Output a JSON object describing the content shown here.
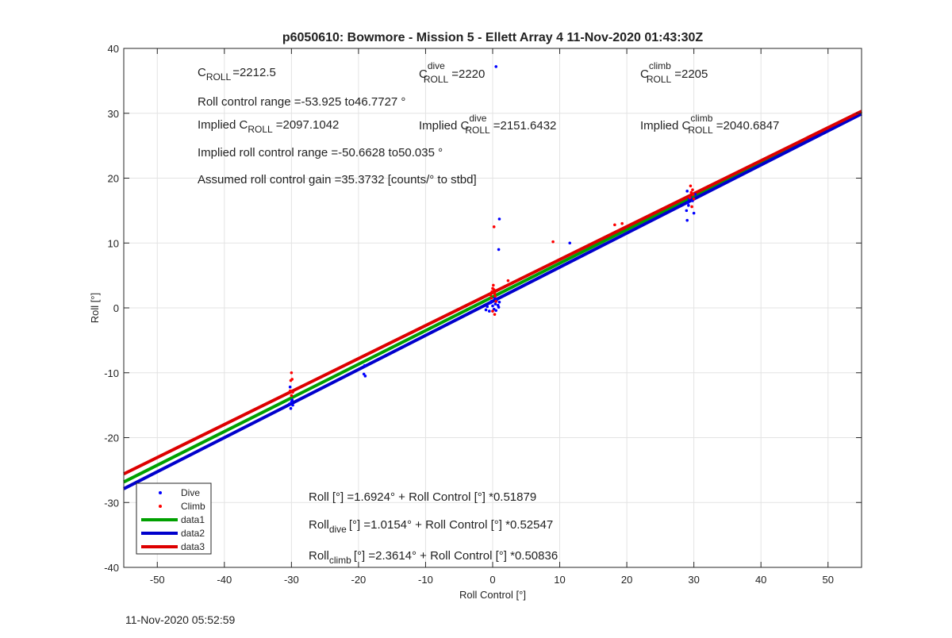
{
  "chart_data": {
    "type": "scatter",
    "title": "p6050610: Bowmore - Mission 5 - Ellett Array 4 11-Nov-2020 01:43:30Z",
    "xlabel": "Roll Control [°]",
    "ylabel": "Roll [°]",
    "xlim": [
      -55,
      55
    ],
    "ylim": [
      -40,
      40
    ],
    "xticks": [
      -50,
      -40,
      -30,
      -20,
      -10,
      0,
      10,
      20,
      30,
      40,
      50
    ],
    "yticks": [
      -40,
      -30,
      -20,
      -10,
      0,
      10,
      20,
      30,
      40
    ],
    "grid": true,
    "legend_position": "bottom-left",
    "series": [
      {
        "name": "Dive",
        "kind": "points",
        "color": "#0000ff",
        "points": [
          [
            -30.2,
            -12.2
          ],
          [
            -30.0,
            -14.5
          ],
          [
            -29.8,
            -15.0
          ],
          [
            -30.1,
            -15.5
          ],
          [
            -30.3,
            -14.8
          ],
          [
            -29.9,
            -14.2
          ],
          [
            -19.2,
            -10.2
          ],
          [
            -19.0,
            -10.5
          ],
          [
            -19.1,
            -8.9
          ],
          [
            -1.0,
            -0.3
          ],
          [
            -0.8,
            0.2
          ],
          [
            -0.5,
            -0.5
          ],
          [
            -0.3,
            0.8
          ],
          [
            0.0,
            0.3
          ],
          [
            0.2,
            -0.2
          ],
          [
            0.4,
            0.6
          ],
          [
            0.6,
            1.2
          ],
          [
            0.8,
            0.4
          ],
          [
            1.0,
            0.9
          ],
          [
            0.3,
            1.5
          ],
          [
            -0.2,
            1.0
          ],
          [
            0.5,
            -0.4
          ],
          [
            0.9,
            0.1
          ],
          [
            0.5,
            37.2
          ],
          [
            1.0,
            13.7
          ],
          [
            0.9,
            9.0
          ],
          [
            11.5,
            10.0
          ],
          [
            29.0,
            18.0
          ],
          [
            28.9,
            15.0
          ],
          [
            29.2,
            15.8
          ],
          [
            29.0,
            13.5
          ],
          [
            29.1,
            16.2
          ],
          [
            29.5,
            17.0
          ],
          [
            29.8,
            16.5
          ],
          [
            30.0,
            14.6
          ],
          [
            29.3,
            16.8
          ],
          [
            30.2,
            17.5
          ]
        ]
      },
      {
        "name": "Climb",
        "kind": "points",
        "color": "#ff0000",
        "points": [
          [
            -30.0,
            -10.0
          ],
          [
            -30.1,
            -11.2
          ],
          [
            -29.9,
            -11.0
          ],
          [
            -30.2,
            -12.8
          ],
          [
            -30.0,
            -13.5
          ],
          [
            -29.8,
            -13.0
          ],
          [
            -0.3,
            2.0
          ],
          [
            -0.1,
            2.5
          ],
          [
            0.0,
            3.0
          ],
          [
            0.2,
            2.8
          ],
          [
            0.4,
            1.8
          ],
          [
            0.1,
            3.5
          ],
          [
            -0.2,
            1.5
          ],
          [
            0.3,
            2.2
          ],
          [
            0.5,
            1.0
          ],
          [
            0.0,
            -0.5
          ],
          [
            0.3,
            -1.0
          ],
          [
            0.2,
            12.5
          ],
          [
            2.3,
            4.2
          ],
          [
            9.0,
            10.2
          ],
          [
            18.2,
            12.8
          ],
          [
            19.3,
            13.0
          ],
          [
            29.5,
            18.8
          ],
          [
            29.6,
            17.8
          ],
          [
            29.8,
            18.2
          ],
          [
            29.4,
            17.0
          ],
          [
            29.7,
            15.6
          ],
          [
            29.9,
            17.5
          ],
          [
            30.0,
            16.8
          ]
        ]
      },
      {
        "name": "data1",
        "kind": "line",
        "color": "#00a000",
        "intercept": 1.6924,
        "slope": 0.51879
      },
      {
        "name": "data2",
        "kind": "line",
        "color": "#0000cc",
        "intercept": 1.0154,
        "slope": 0.52547
      },
      {
        "name": "data3",
        "kind": "line",
        "color": "#dd0000",
        "intercept": 2.3614,
        "slope": 0.50836
      }
    ],
    "annotations": {
      "c_roll": {
        "base": "C",
        "sub": "ROLL",
        "value": "=2212.5"
      },
      "c_roll_dive": {
        "base": "C",
        "sup": "dive",
        "sub": "ROLL",
        "value": "=2220"
      },
      "c_roll_climb": {
        "base": "C",
        "sup": "climb",
        "sub": "ROLL",
        "value": "=2205"
      },
      "roll_range": "Roll control range =-53.925 to46.7727 °",
      "implied_c_roll": {
        "prefix": "Implied C",
        "sub": "ROLL",
        "value": "=2097.1042"
      },
      "implied_c_roll_dive": {
        "prefix": "Implied C",
        "sup": "dive",
        "sub": "ROLL",
        "value": "=2151.6432"
      },
      "implied_c_roll_climb": {
        "prefix": "Implied C",
        "sup": "climb",
        "sub": "ROLL",
        "value": "=2040.6847"
      },
      "implied_range": "Implied roll control range =-50.6628 to50.035 °",
      "gain": "Assumed roll control gain =35.3732 [counts/° to stbd]",
      "fit_all": {
        "base": "Roll",
        "sub": "",
        "text": "[°] =1.6924° + Roll Control [°] *0.51879"
      },
      "fit_dive": {
        "base": "Roll",
        "sub": "dive",
        "text": "[°] =1.0154° + Roll Control [°] *0.52547"
      },
      "fit_climb": {
        "base": "Roll",
        "sub": "climb",
        "text": "[°] =2.3614° + Roll Control [°] *0.50836"
      }
    }
  },
  "footer_timestamp": "11-Nov-2020 05:52:59"
}
